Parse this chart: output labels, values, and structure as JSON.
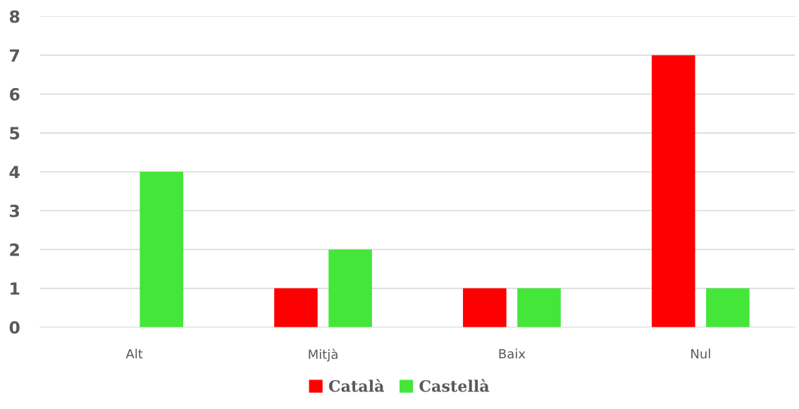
{
  "chart_data": {
    "type": "bar",
    "categories": [
      "Alt",
      "Mitjà",
      "Baix",
      "Nul"
    ],
    "series": [
      {
        "name": "Català",
        "color": "#ff0000",
        "values": [
          0,
          1,
          1,
          7
        ]
      },
      {
        "name": "Castellà",
        "color": "#44e63a",
        "values": [
          4,
          2,
          1,
          1
        ]
      }
    ],
    "ylim": [
      0,
      8
    ],
    "yticks": [
      0,
      1,
      2,
      3,
      4,
      5,
      6,
      7,
      8
    ],
    "grid": "y",
    "legend": "bottom"
  }
}
